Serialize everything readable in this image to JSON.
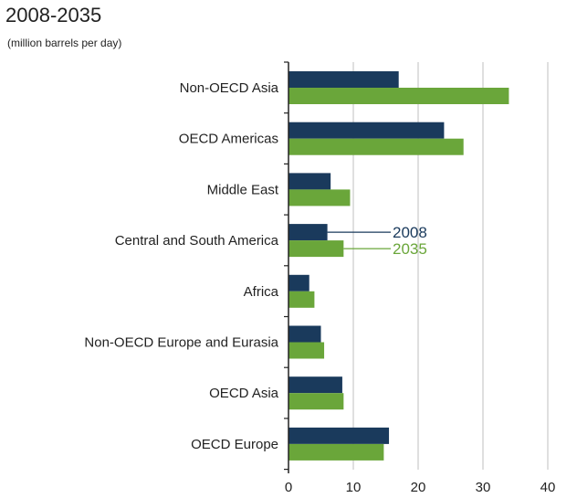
{
  "title": "2008-2035",
  "subtitle": "(million barrels per day)",
  "colors": {
    "series_2008": "#1a3a5c",
    "series_2035": "#6aa63a",
    "axis": "#222222",
    "grid": "#bfbfbf"
  },
  "chart_data": {
    "type": "bar",
    "orientation": "horizontal",
    "title": "2008-2035",
    "subtitle": "(million barrels per day)",
    "categories": [
      "Non-OECD Asia",
      "OECD Americas",
      "Middle East",
      "Central and South America",
      "Africa",
      "Non-OECD Europe and Eurasia",
      "OECD Asia",
      "OECD Europe"
    ],
    "series": [
      {
        "name": "2008",
        "values": [
          17,
          24,
          6.5,
          6,
          3.2,
          5,
          8.3,
          15.5
        ]
      },
      {
        "name": "2035",
        "values": [
          34,
          27,
          9.5,
          8.5,
          4,
          5.5,
          8.5,
          14.7
        ]
      }
    ],
    "xlim": [
      0,
      45
    ],
    "xticks": [
      0,
      10,
      20,
      30,
      40
    ],
    "tick_labels": [
      "0",
      "10",
      "20",
      "30",
      "40"
    ],
    "grid": true,
    "legend": "inline labels beside Central and South America bars"
  }
}
